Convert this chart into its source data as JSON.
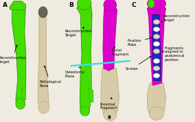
{
  "bg_color": "#f0ebe0",
  "panel_labels": [
    "A",
    "B",
    "C"
  ],
  "bone_color": "#d8cca8",
  "bone_edge": "#b8a878",
  "green_color": "#44dd00",
  "green_edge": "#229900",
  "magenta_color": "#dd00cc",
  "magenta_edge": "#aa0099",
  "blue_color": "#1133bb",
  "blue_edge": "#001188",
  "cyan_color": "#44dddd",
  "dark_gray": "#666655",
  "label_fontsize": 3.8,
  "panel_label_fontsize": 6.5
}
